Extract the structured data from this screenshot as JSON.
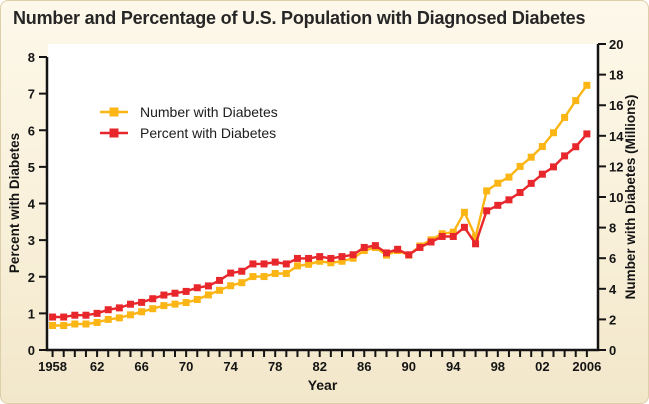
{
  "chart_data": {
    "type": "line",
    "title": "Number and Percentage of U.S. Population with Diagnosed Diabetes",
    "xlabel": "Year",
    "grid": false,
    "plot_background": "#FFFFFF",
    "page_background": "#F9F0DA",
    "legend_position": "upper-left",
    "left_axis": {
      "label": "Percent with Diabetes",
      "range": [
        0,
        8
      ],
      "ticks": [
        0,
        1,
        2,
        3,
        4,
        5,
        6,
        7,
        8
      ]
    },
    "right_axis": {
      "label": "Number with Diabetes (Millions)",
      "range": [
        0,
        20
      ],
      "ticks": [
        0,
        2,
        4,
        6,
        8,
        10,
        12,
        14,
        16,
        18,
        20
      ]
    },
    "x_axis": {
      "range": [
        1958,
        2006
      ],
      "minor_tick_every_years": 1,
      "labeled_ticks": [
        {
          "year": 1958,
          "label": "1958"
        },
        {
          "year": 1962,
          "label": "62"
        },
        {
          "year": 1966,
          "label": "66"
        },
        {
          "year": 1970,
          "label": "70"
        },
        {
          "year": 1974,
          "label": "74"
        },
        {
          "year": 1978,
          "label": "78"
        },
        {
          "year": 1982,
          "label": "82"
        },
        {
          "year": 1986,
          "label": "86"
        },
        {
          "year": 1990,
          "label": "90"
        },
        {
          "year": 1994,
          "label": "94"
        },
        {
          "year": 1998,
          "label": "98"
        },
        {
          "year": 2002,
          "label": "02"
        },
        {
          "year": 2006,
          "label": "2006"
        }
      ]
    },
    "years": [
      1958,
      1959,
      1960,
      1961,
      1962,
      1963,
      1964,
      1965,
      1966,
      1967,
      1968,
      1969,
      1970,
      1971,
      1972,
      1973,
      1974,
      1975,
      1976,
      1977,
      1978,
      1979,
      1980,
      1981,
      1982,
      1983,
      1984,
      1985,
      1986,
      1987,
      1988,
      1989,
      1990,
      1991,
      1992,
      1993,
      1994,
      1995,
      1996,
      1997,
      1998,
      1999,
      2000,
      2001,
      2002,
      2003,
      2004,
      2005,
      2006
    ],
    "series": [
      {
        "name": "Number with Diabetes",
        "axis": "right",
        "units": "millions",
        "color": "#FBB615",
        "marker": "square",
        "values": [
          1.6,
          1.6,
          1.7,
          1.7,
          1.8,
          2.0,
          2.1,
          2.3,
          2.5,
          2.7,
          2.9,
          3.0,
          3.1,
          3.3,
          3.6,
          3.9,
          4.2,
          4.4,
          4.8,
          4.8,
          5.0,
          5.0,
          5.5,
          5.6,
          5.8,
          5.7,
          5.8,
          6.0,
          6.5,
          6.7,
          6.2,
          6.5,
          6.2,
          6.8,
          7.2,
          7.6,
          7.7,
          9.0,
          7.4,
          10.4,
          10.9,
          11.3,
          12.0,
          12.6,
          13.3,
          14.2,
          15.2,
          16.3,
          17.3
        ]
      },
      {
        "name": "Percent with Diabetes",
        "axis": "left",
        "units": "percent",
        "color": "#E8272C",
        "marker": "square",
        "values": [
          0.9,
          0.9,
          0.95,
          0.95,
          1.0,
          1.1,
          1.15,
          1.25,
          1.3,
          1.4,
          1.5,
          1.55,
          1.6,
          1.7,
          1.75,
          1.9,
          2.1,
          2.15,
          2.35,
          2.35,
          2.4,
          2.35,
          2.5,
          2.5,
          2.55,
          2.5,
          2.55,
          2.6,
          2.8,
          2.85,
          2.65,
          2.75,
          2.6,
          2.8,
          2.95,
          3.1,
          3.1,
          3.35,
          2.9,
          3.8,
          3.95,
          4.1,
          4.3,
          4.55,
          4.8,
          5.0,
          5.3,
          5.55,
          5.9
        ]
      }
    ]
  }
}
